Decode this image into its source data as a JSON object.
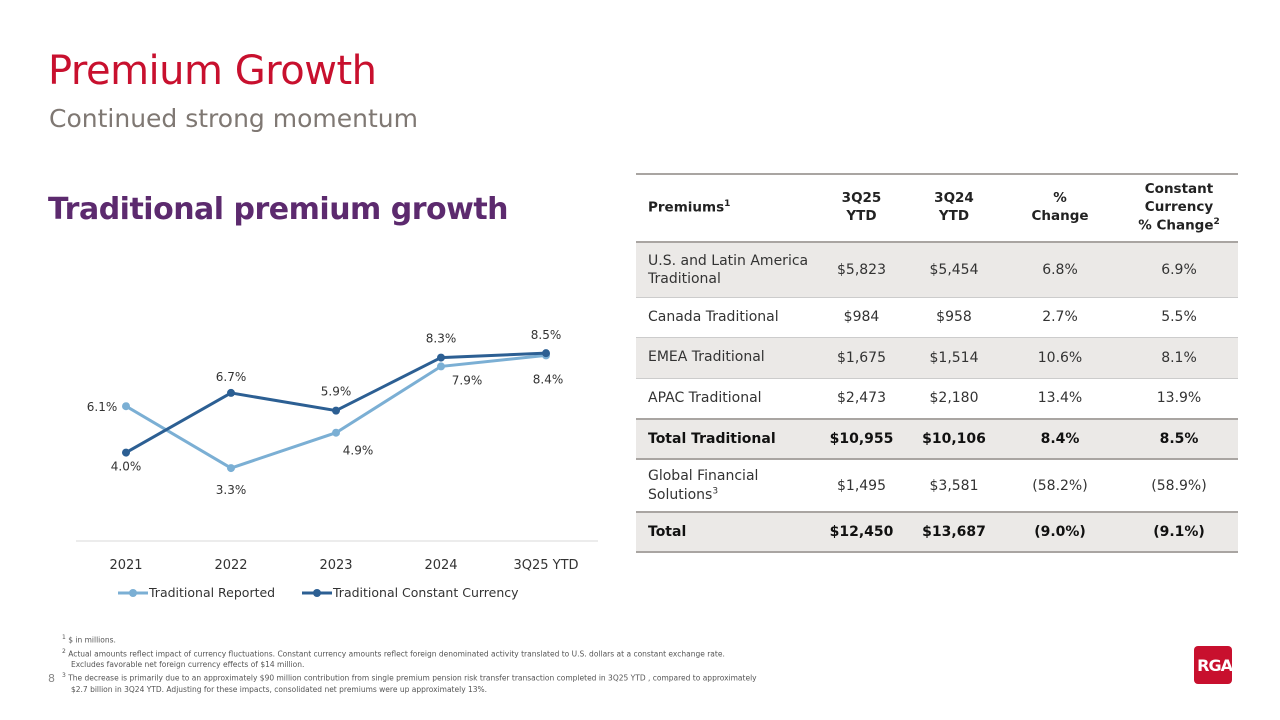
{
  "header": {
    "title": "Premium Growth",
    "subtitle": "Continued strong momentum"
  },
  "chart_heading": "Traditional premium growth",
  "chart_data": {
    "type": "line",
    "categories": [
      "2021",
      "2022",
      "2023",
      "2024",
      "3Q25 YTD"
    ],
    "series": [
      {
        "name": "Traditional Reported",
        "values": [
          6.1,
          3.3,
          4.9,
          7.9,
          8.4
        ],
        "labels": [
          "6.1%",
          "3.3%",
          "4.9%",
          "7.9%",
          "8.4%"
        ],
        "color": "#7bafd4"
      },
      {
        "name": "Traditional Constant Currency",
        "values": [
          4.0,
          6.7,
          5.9,
          8.3,
          8.5
        ],
        "labels": [
          "4.0%",
          "6.7%",
          "5.9%",
          "8.3%",
          "8.5%"
        ],
        "color": "#2c5f93"
      }
    ],
    "ylim": [
      0,
      10.2
    ],
    "grid": false,
    "legend": "bottom"
  },
  "table": {
    "headers": [
      "Premiums",
      "3Q25\nYTD",
      "3Q24\nYTD",
      "%\nChange",
      "Constant\nCurrency\n% Change"
    ],
    "header_sups": [
      "1",
      "",
      "",
      "",
      "2"
    ],
    "rows": [
      {
        "label": "U.S. and Latin America Traditional",
        "sup": "",
        "cells": [
          "$5,823",
          "$5,454",
          "6.8%",
          "6.9%"
        ],
        "style": "g"
      },
      {
        "label": "Canada Traditional",
        "sup": "",
        "cells": [
          "$984",
          "$958",
          "2.7%",
          "5.5%"
        ],
        "style": ""
      },
      {
        "label": "EMEA Traditional",
        "sup": "",
        "cells": [
          "$1,675",
          "$1,514",
          "10.6%",
          "8.1%"
        ],
        "style": "g"
      },
      {
        "label": "APAC Traditional",
        "sup": "",
        "cells": [
          "$2,473",
          "$2,180",
          "13.4%",
          "13.9%"
        ],
        "style": ""
      },
      {
        "label": "Total Traditional",
        "sup": "",
        "cells": [
          "$10,955",
          "$10,106",
          "8.4%",
          "8.5%"
        ],
        "style": "g b"
      },
      {
        "label": "Global Financial Solutions",
        "sup": "3",
        "cells": [
          "$1,495",
          "$3,581",
          "(58.2%)",
          "(58.9%)"
        ],
        "style": ""
      },
      {
        "label": "Total",
        "sup": "",
        "cells": [
          "$12,450",
          "$13,687",
          "(9.0%)",
          "(9.1%)"
        ],
        "style": "g b"
      }
    ]
  },
  "footnotes": [
    {
      "sup": "1",
      "text": "$ in millions."
    },
    {
      "sup": "2",
      "text": "Actual amounts reflect impact of currency fluctuations. Constant currency amounts reflect foreign denominated activity translated to U.S. dollars at a constant exchange rate.",
      "cont": "Excludes favorable net foreign currency effects of $14 million."
    },
    {
      "sup": "3",
      "text": "The decrease is primarily due to an approximately $90 million contribution from single premium pension risk transfer transaction completed in 3Q25 YTD , compared to approximately",
      "cont": "$2.7 billion in 3Q24 YTD. Adjusting for these impacts, consolidated net premiums were up approximately 13%."
    }
  ],
  "page_number": "8",
  "logo": "RGA"
}
